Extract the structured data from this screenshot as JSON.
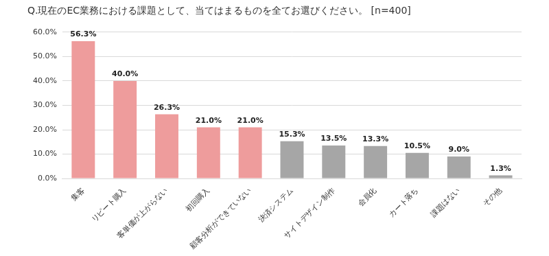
{
  "chart_data": {
    "type": "bar",
    "title": "Q.現在のEC業務における課題として、当てはまるものを全てお選びください。 [n=400]",
    "categories": [
      "集客",
      "リピート購入",
      "客単価が上がらない",
      "初回購入",
      "顧客分析ができていない",
      "決済システム",
      "サイトデザイン制作",
      "会員化",
      "カート落ち",
      "課題はない",
      "その他"
    ],
    "values": [
      56.3,
      40.0,
      26.3,
      21.0,
      21.0,
      15.3,
      13.5,
      13.3,
      10.5,
      9.0,
      1.3
    ],
    "value_labels": [
      "56.3%",
      "40.0%",
      "26.3%",
      "21.0%",
      "21.0%",
      "15.3%",
      "13.5%",
      "13.3%",
      "10.5%",
      "9.0%",
      "1.3%"
    ],
    "colors": [
      "#ee9c9c",
      "#ee9c9c",
      "#ee9c9c",
      "#ee9c9c",
      "#ee9c9c",
      "#a6a6a6",
      "#a6a6a6",
      "#a6a6a6",
      "#a6a6a6",
      "#a6a6a6",
      "#a6a6a6"
    ],
    "ylim": [
      0,
      60
    ],
    "yticks": [
      {
        "value": 0,
        "label": "0.0%"
      },
      {
        "value": 10,
        "label": "10.0%"
      },
      {
        "value": 20,
        "label": "20.0%"
      },
      {
        "value": 30,
        "label": "30.0%"
      },
      {
        "value": 40,
        "label": "40.0%"
      },
      {
        "value": 50,
        "label": "50.0%"
      },
      {
        "value": 60,
        "label": "60.0%"
      }
    ],
    "grid": true,
    "data_labels": true
  }
}
